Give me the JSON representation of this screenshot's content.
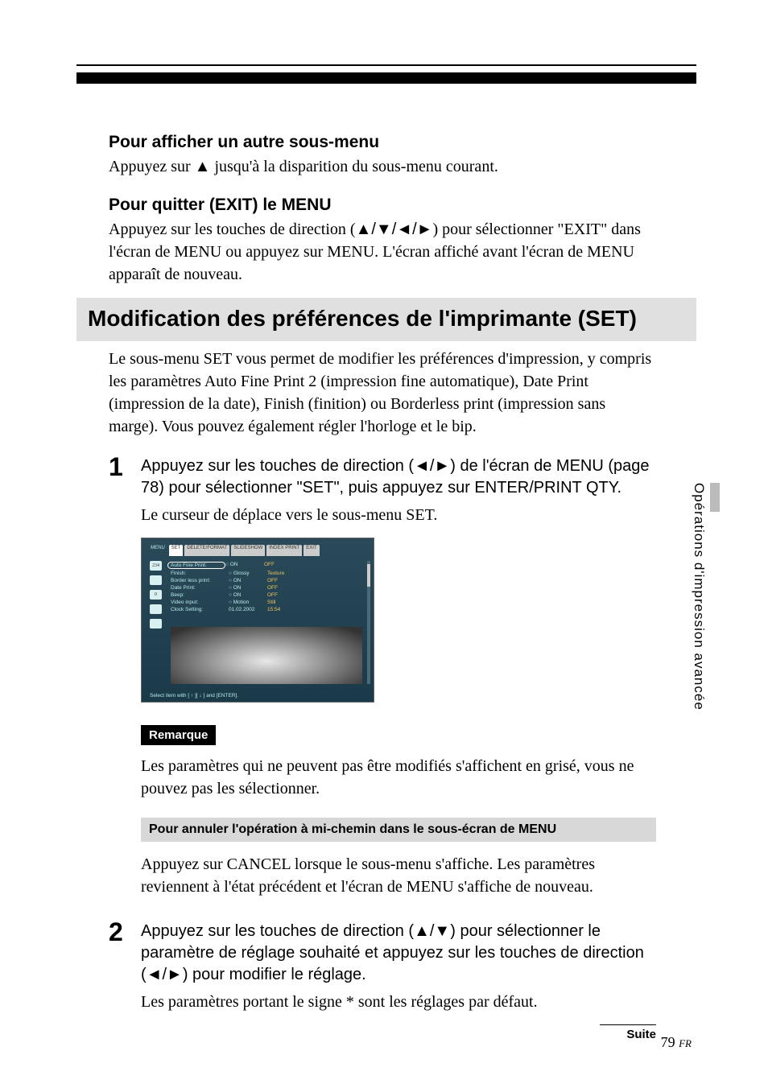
{
  "section1": {
    "heading": "Pour afficher un autre sous-menu",
    "body_before": "Appuyez sur ",
    "body_arrow": "▲",
    "body_after": " jusqu'à la disparition du sous-menu courant."
  },
  "section2": {
    "heading": "Pour quitter (EXIT) le MENU",
    "body_before": "Appuyez sur les touches de direction (",
    "body_arrows": "▲/▼/◄/►",
    "body_after": ") pour sélectionner \"EXIT\" dans l'écran de MENU ou appuyez sur MENU. L'écran affiché avant l'écran de MENU apparaît de nouveau."
  },
  "main_heading": "Modification des préférences de l'imprimante (SET)",
  "intro": "Le sous-menu SET vous permet de modifier les préférences d'impression, y compris les paramètres Auto Fine Print 2 (impression fine automatique), Date Print (impression de la date), Finish (finition) ou Borderless print (impression sans marge). Vous pouvez également régler l'horloge et le bip.",
  "step1": {
    "num": "1",
    "text_before": "Appuyez sur les touches de direction (",
    "text_arrows": "◄/►",
    "text_after": ") de l'écran de MENU (page 78) pour sélectionner \"SET\", puis appuyez sur ENTER/PRINT QTY.",
    "desc": "Le curseur de déplace vers le sous-menu SET."
  },
  "screenshot": {
    "tabs": [
      "MENU",
      "SET",
      "DELETE/FORMAT",
      "SLIDESHOW",
      "INDEX PRINT",
      "EXIT"
    ],
    "side_icons": [
      "234",
      "",
      "0",
      "",
      ""
    ],
    "rows": [
      {
        "label": "Auto Fine Print:",
        "col2": "○ ON",
        "col3": "OFF",
        "hl": true
      },
      {
        "label": "Finish:",
        "col2": "○ Glossy",
        "col3": "Texture",
        "hl": false
      },
      {
        "label": "Border less print:",
        "col2": "○ ON",
        "col3": "OFF",
        "hl": false
      },
      {
        "label": "Date Print:",
        "col2": "○ ON",
        "col3": "OFF",
        "hl": false
      },
      {
        "label": "Beep:",
        "col2": "○ ON",
        "col3": "OFF",
        "hl": false
      },
      {
        "label": "Video input:",
        "col2": "○ Motion",
        "col3": "Still",
        "hl": false
      },
      {
        "label": "Clock Setting:",
        "col2": "01.02.2002",
        "col3": "15:54",
        "hl": false
      }
    ],
    "footer": "Select item with [ ↑ ][ ↓ ] and [ENTER]."
  },
  "remarque": {
    "label": "Remarque",
    "text": "Les paramètres qui ne peuvent pas être modifiés s'affichent en grisé, vous ne pouvez pas les sélectionner."
  },
  "grey_bar": "Pour annuler l'opération à mi-chemin dans le sous-écran de MENU",
  "grey_bar_text": "Appuyez sur CANCEL lorsque le sous-menu s'affiche. Les paramètres reviennent à l'état précédent et l'écran de MENU s'affiche de nouveau.",
  "step2": {
    "num": "2",
    "text_p1": "Appuyez sur les touches de direction (",
    "text_a1": "▲/▼",
    "text_p2": ") pour sélectionner le paramètre de réglage souhaité et appuyez sur les touches de direction (",
    "text_a2": "◄/►",
    "text_p3": ") pour modifier le réglage.",
    "desc": "Les paramètres portant le signe * sont les réglages par défaut."
  },
  "suite": "Suite",
  "side_tab": "Opérations d'impression avancée",
  "page_num": "79",
  "page_lang": "FR"
}
